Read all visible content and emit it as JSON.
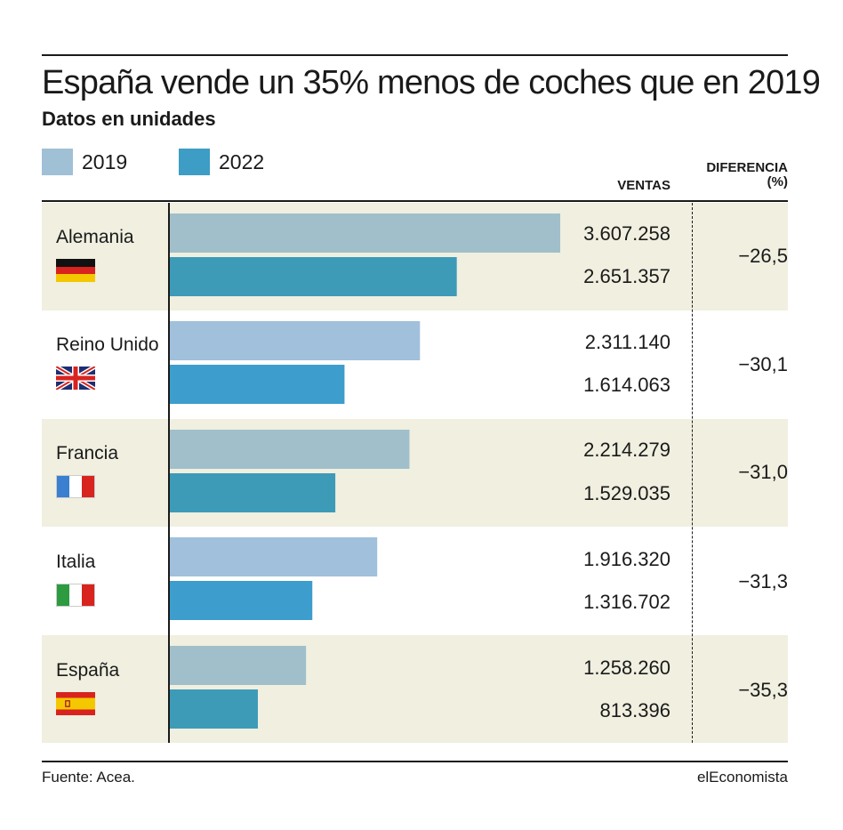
{
  "chart_data": {
    "type": "bar",
    "orientation": "horizontal",
    "title": "España vende un 35% menos de coches que en 2019",
    "subtitle": "Datos en unidades",
    "categories": [
      "Alemania",
      "Reino Unido",
      "Francia",
      "Italia",
      "España"
    ],
    "series": [
      {
        "name": "2019",
        "values": [
          3607258,
          2311140,
          2214279,
          1916320,
          1258260
        ],
        "labels": [
          "3.607.258",
          "2.311.140",
          "2.214.279",
          "1.916.320",
          "1.258.260"
        ]
      },
      {
        "name": "2022",
        "values": [
          2651357,
          1614063,
          1529035,
          1316702,
          813396
        ],
        "labels": [
          "2.651.357",
          "1.614.063",
          "1.529.035",
          "1.316.702",
          "813.396"
        ]
      }
    ],
    "diferencia": [
      "−26,5",
      "−30,1",
      "−31,0",
      "−31,3",
      "−35,3"
    ],
    "column_headers": {
      "ventas": "VENTAS",
      "diferencia_line1": "DIFERENCIA",
      "diferencia_line2": "(%)"
    },
    "legend_placement": "top-left",
    "xlim": [
      0,
      3607258
    ],
    "grid": false,
    "source": "Fuente: Acea.",
    "brand": "elEconomista",
    "colors": {
      "series_2019": "#a0c0d6",
      "series_2022": "#3d9dc4",
      "band": "#f0efe0",
      "axis": "#1a1a1a"
    },
    "flags": [
      "germany-flag-icon",
      "uk-flag-icon",
      "france-flag-icon",
      "italy-flag-icon",
      "spain-flag-icon"
    ]
  }
}
